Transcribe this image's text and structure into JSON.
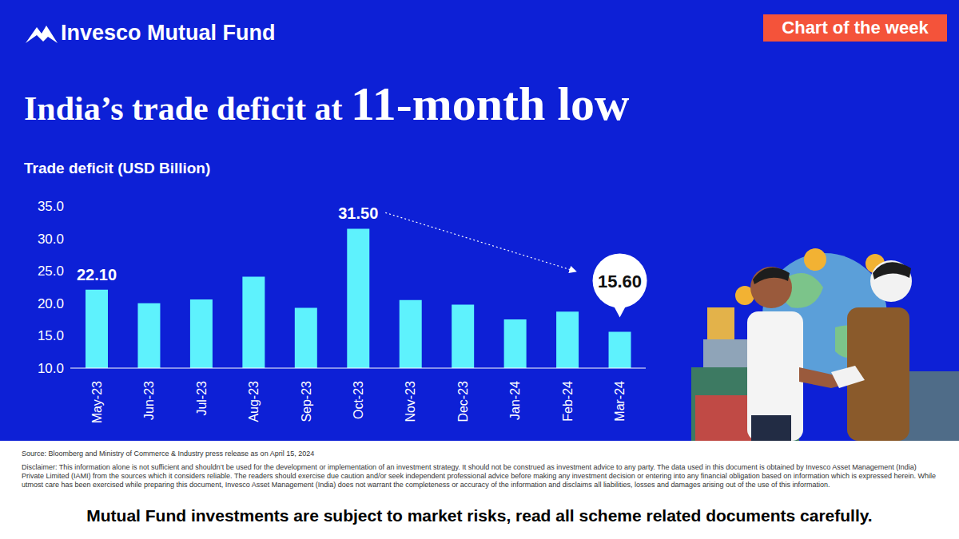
{
  "header": {
    "brand": "Invesco Mutual Fund",
    "badge": "Chart of the week"
  },
  "chart_data": {
    "type": "bar",
    "title": "India’s trade deficit at 11-month low",
    "y_label": "Trade deficit (USD Billion)",
    "categories": [
      "May-23",
      "Jun-23",
      "Jul-23",
      "Aug-23",
      "Sep-23",
      "Oct-23",
      "Nov-23",
      "Dec-23",
      "Jan-24",
      "Feb-24",
      "Mar-24"
    ],
    "values": [
      22.1,
      20.0,
      20.6,
      24.1,
      19.3,
      31.5,
      20.5,
      19.8,
      17.5,
      18.7,
      15.6
    ],
    "color": "#5ef2fd",
    "ylim": [
      10,
      35
    ],
    "yticks": [
      {
        "value": 10,
        "label": "10.0"
      },
      {
        "value": 15,
        "label": "15.0"
      },
      {
        "value": 20,
        "label": "20.0"
      },
      {
        "value": 25,
        "label": "25.0"
      },
      {
        "value": 30,
        "label": "30.0"
      },
      {
        "value": 35,
        "label": "35.0"
      }
    ],
    "grid": false,
    "annotations": [
      {
        "category": "May-23",
        "label": "22.10"
      },
      {
        "category": "Oct-23",
        "label": "31.50"
      },
      {
        "category": "Mar-24",
        "label": "15.60"
      }
    ]
  },
  "footer": {
    "source": "Source: Bloomberg and Ministry of Commerce & Industry press release as on April 15, 2024",
    "disclaimer": "Disclaimer: This information alone is not sufficient and shouldn’t be used for the development or implementation of an investment strategy. It should not be construed as investment advice to any party. The data used in this document is obtained by Invesco Asset Management (India) Private Limited (IAMI) from the sources which it considers reliable. The readers should exercise due caution and/or seek independent professional advice before making any investment decision or entering into any financial obligation based on information which is expressed herein. While utmost care has been exercised while preparing this document, Invesco Asset Management (India) does not warrant the completeness or accuracy of the information and disclaims all liabilities, losses and damages arising out of the use of this information.",
    "notice": "Mutual Fund investments are subject to market risks, read all scheme related documents carefully."
  }
}
